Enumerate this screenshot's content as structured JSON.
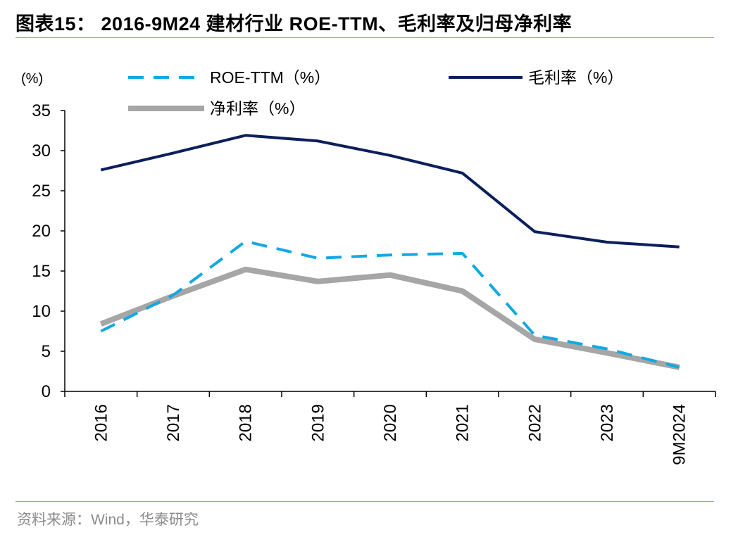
{
  "header": {
    "title": "图表15： 2016-9M24 建材行业 ROE-TTM、毛利率及归母净利率"
  },
  "footer": {
    "source": "资料来源：Wind，华泰研究"
  },
  "colors": {
    "roe": "#12a9e2",
    "gross": "#0b1f5c",
    "net": "#a6a6a6",
    "rule": "#8aa4c9"
  },
  "chart_data": {
    "type": "line",
    "title": "2016-9M24 建材行业 ROE-TTM、毛利率及归母净利率",
    "ylabel": "(%)",
    "xlabel": "",
    "ylim": [
      0,
      35
    ],
    "yticks": [
      0,
      5,
      10,
      15,
      20,
      25,
      30,
      35
    ],
    "categories": [
      "2016",
      "2017",
      "2018",
      "2019",
      "2020",
      "2021",
      "2022",
      "2023",
      "9M2024"
    ],
    "series": [
      {
        "name": "ROE-TTM（%）",
        "style": "dashed",
        "values": [
          7.5,
          12.0,
          18.7,
          16.6,
          17.0,
          17.2,
          7.0,
          5.3,
          3.0
        ]
      },
      {
        "name": "毛利率（%）",
        "style": "solid",
        "values": [
          27.6,
          29.7,
          31.9,
          31.2,
          29.4,
          27.2,
          19.9,
          18.6,
          18.0
        ]
      },
      {
        "name": "净利率（%）",
        "style": "solid-thick",
        "values": [
          8.4,
          11.9,
          15.2,
          13.7,
          14.5,
          12.5,
          6.5,
          4.8,
          3.0
        ]
      }
    ],
    "legend": "top"
  }
}
